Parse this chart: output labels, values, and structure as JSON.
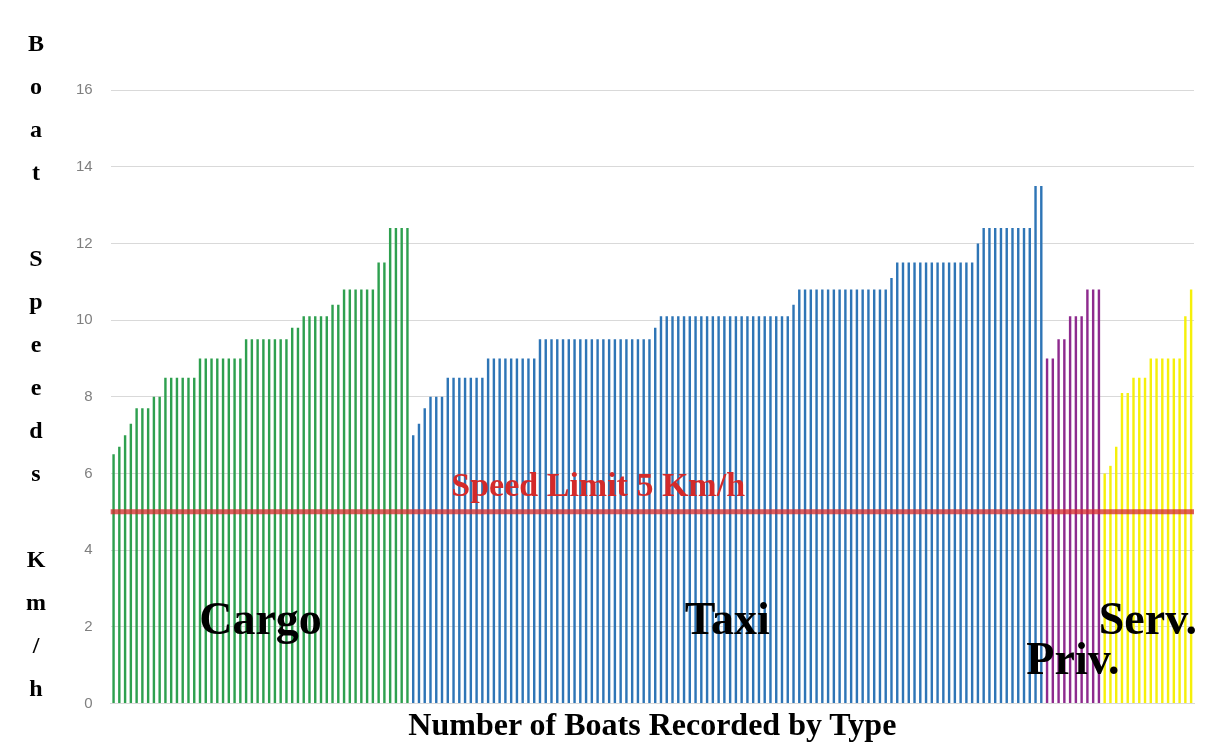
{
  "chart_data": {
    "type": "bar",
    "xlabel": "Number of Boats Recorded by Type",
    "ylabel": "Boat Speeds Km/h",
    "categories": [
      null,
      null,
      null,
      null,
      null,
      null,
      null,
      null,
      null,
      null,
      null,
      null,
      null,
      null,
      null,
      null,
      null,
      null,
      null,
      null,
      null,
      null,
      null,
      null,
      null,
      null,
      null,
      null,
      null,
      null,
      null,
      null,
      null,
      null,
      null,
      null,
      null,
      null,
      null,
      null,
      null,
      null,
      null,
      null,
      null,
      null,
      null,
      null,
      null,
      null,
      null,
      null,
      null,
      null,
      null,
      null,
      null,
      null,
      null,
      null,
      null,
      null,
      null,
      null,
      null,
      null,
      null,
      null,
      null,
      null,
      null,
      null,
      null,
      null,
      null,
      null,
      null,
      null,
      null,
      null,
      null,
      null,
      null,
      null,
      null,
      null,
      null,
      null,
      null,
      null,
      null,
      null,
      null,
      null,
      null,
      null,
      null,
      null,
      null,
      null,
      null,
      null,
      null,
      null,
      null,
      null,
      null,
      null,
      null,
      null,
      null,
      null,
      null,
      null,
      null,
      null,
      null,
      null,
      null,
      null,
      null,
      null,
      null,
      null,
      null,
      null,
      null,
      null,
      null,
      null,
      null,
      null,
      null,
      null,
      null,
      null,
      null,
      null,
      null,
      null,
      null,
      null,
      null,
      null,
      null,
      null,
      null,
      null,
      null,
      null,
      null,
      null,
      null,
      null,
      null,
      null,
      null,
      null,
      null,
      null,
      null,
      null,
      null,
      null,
      null,
      null,
      null,
      null,
      null,
      null,
      null,
      null,
      null,
      null,
      null,
      null,
      null,
      null,
      null,
      null,
      null,
      null,
      null,
      null,
      null,
      null,
      null,
      null
    ],
    "series": [
      {
        "name": "Cargo",
        "color": "#2ea04f",
        "values": [
          6.5,
          6.7,
          7.0,
          7.3,
          7.7,
          7.7,
          7.7,
          8.0,
          8.0,
          8.5,
          8.5,
          8.5,
          8.5,
          8.5,
          8.5,
          9.0,
          9.0,
          9.0,
          9.0,
          9.0,
          9.0,
          9.0,
          9.0,
          9.5,
          9.5,
          9.5,
          9.5,
          9.5,
          9.5,
          9.5,
          9.5,
          9.8,
          9.8,
          10.1,
          10.1,
          10.1,
          10.1,
          10.1,
          10.4,
          10.4,
          10.8,
          10.8,
          10.8,
          10.8,
          10.8,
          10.8,
          11.5,
          11.5,
          12.4,
          12.4,
          12.4,
          12.4,
          null,
          null,
          null,
          null,
          null,
          null,
          null,
          null,
          null,
          null,
          null,
          null,
          null,
          null,
          null,
          null,
          null,
          null,
          null,
          null,
          null,
          null,
          null,
          null,
          null,
          null,
          null,
          null,
          null,
          null,
          null,
          null,
          null,
          null,
          null,
          null,
          null,
          null,
          null,
          null,
          null,
          null,
          null,
          null,
          null,
          null,
          null,
          null,
          null,
          null,
          null,
          null,
          null,
          null,
          null,
          null,
          null,
          null,
          null,
          null,
          null,
          null,
          null,
          null,
          null,
          null,
          null,
          null,
          null,
          null,
          null,
          null,
          null,
          null,
          null,
          null,
          null,
          null,
          null,
          null,
          null,
          null,
          null,
          null,
          null,
          null,
          null,
          null,
          null,
          null,
          null,
          null,
          null,
          null,
          null,
          null,
          null,
          null,
          null,
          null,
          null,
          null,
          null,
          null,
          null,
          null,
          null,
          null,
          null,
          null,
          null,
          null,
          null,
          null,
          null,
          null,
          null,
          null,
          null,
          null,
          null,
          null,
          null,
          null,
          null,
          null,
          null,
          null,
          null,
          null,
          null,
          null,
          null,
          null,
          null,
          null
        ]
      },
      {
        "name": "Taxi",
        "color": "#2e75b6",
        "values": [
          null,
          null,
          null,
          null,
          null,
          null,
          null,
          null,
          null,
          null,
          null,
          null,
          null,
          null,
          null,
          null,
          null,
          null,
          null,
          null,
          null,
          null,
          null,
          null,
          null,
          null,
          null,
          null,
          null,
          null,
          null,
          null,
          null,
          null,
          null,
          null,
          null,
          null,
          null,
          null,
          null,
          null,
          null,
          null,
          null,
          null,
          null,
          null,
          null,
          null,
          null,
          null,
          7.0,
          7.3,
          7.7,
          8.0,
          8.0,
          8.0,
          8.5,
          8.5,
          8.5,
          8.5,
          8.5,
          8.5,
          8.5,
          9.0,
          9.0,
          9.0,
          9.0,
          9.0,
          9.0,
          9.0,
          9.0,
          9.0,
          9.5,
          9.5,
          9.5,
          9.5,
          9.5,
          9.5,
          9.5,
          9.5,
          9.5,
          9.5,
          9.5,
          9.5,
          9.5,
          9.5,
          9.5,
          9.5,
          9.5,
          9.5,
          9.5,
          9.5,
          9.8,
          10.1,
          10.1,
          10.1,
          10.1,
          10.1,
          10.1,
          10.1,
          10.1,
          10.1,
          10.1,
          10.1,
          10.1,
          10.1,
          10.1,
          10.1,
          10.1,
          10.1,
          10.1,
          10.1,
          10.1,
          10.1,
          10.1,
          10.1,
          10.4,
          10.8,
          10.8,
          10.8,
          10.8,
          10.8,
          10.8,
          10.8,
          10.8,
          10.8,
          10.8,
          10.8,
          10.8,
          10.8,
          10.8,
          10.8,
          10.8,
          11.1,
          11.5,
          11.5,
          11.5,
          11.5,
          11.5,
          11.5,
          11.5,
          11.5,
          11.5,
          11.5,
          11.5,
          11.5,
          11.5,
          11.5,
          12.0,
          12.4,
          12.4,
          12.4,
          12.4,
          12.4,
          12.4,
          12.4,
          12.4,
          12.4,
          13.5,
          13.5,
          null,
          null,
          null,
          null,
          null,
          null,
          null,
          null,
          null,
          null,
          null,
          null,
          null,
          null,
          null,
          null,
          null,
          null,
          null,
          null,
          null,
          null,
          null,
          null,
          null,
          null
        ]
      },
      {
        "name": "Priv.",
        "color": "#8e2a8e",
        "values": [
          null,
          null,
          null,
          null,
          null,
          null,
          null,
          null,
          null,
          null,
          null,
          null,
          null,
          null,
          null,
          null,
          null,
          null,
          null,
          null,
          null,
          null,
          null,
          null,
          null,
          null,
          null,
          null,
          null,
          null,
          null,
          null,
          null,
          null,
          null,
          null,
          null,
          null,
          null,
          null,
          null,
          null,
          null,
          null,
          null,
          null,
          null,
          null,
          null,
          null,
          null,
          null,
          null,
          null,
          null,
          null,
          null,
          null,
          null,
          null,
          null,
          null,
          null,
          null,
          null,
          null,
          null,
          null,
          null,
          null,
          null,
          null,
          null,
          null,
          null,
          null,
          null,
          null,
          null,
          null,
          null,
          null,
          null,
          null,
          null,
          null,
          null,
          null,
          null,
          null,
          null,
          null,
          null,
          null,
          null,
          null,
          null,
          null,
          null,
          null,
          null,
          null,
          null,
          null,
          null,
          null,
          null,
          null,
          null,
          null,
          null,
          null,
          null,
          null,
          null,
          null,
          null,
          null,
          null,
          null,
          null,
          null,
          null,
          null,
          null,
          null,
          null,
          null,
          null,
          null,
          null,
          null,
          null,
          null,
          null,
          null,
          null,
          null,
          null,
          null,
          null,
          null,
          null,
          null,
          null,
          null,
          null,
          null,
          null,
          null,
          null,
          null,
          null,
          null,
          null,
          null,
          null,
          null,
          null,
          null,
          null,
          null,
          9.0,
          9.0,
          9.5,
          9.5,
          10.1,
          10.1,
          10.1,
          10.8,
          10.8,
          10.8,
          null,
          null,
          null,
          null,
          null,
          null,
          null,
          null,
          null,
          null,
          null,
          null,
          null,
          null,
          null,
          null
        ]
      },
      {
        "name": "Serv.",
        "color": "#f5f00a",
        "values": [
          null,
          null,
          null,
          null,
          null,
          null,
          null,
          null,
          null,
          null,
          null,
          null,
          null,
          null,
          null,
          null,
          null,
          null,
          null,
          null,
          null,
          null,
          null,
          null,
          null,
          null,
          null,
          null,
          null,
          null,
          null,
          null,
          null,
          null,
          null,
          null,
          null,
          null,
          null,
          null,
          null,
          null,
          null,
          null,
          null,
          null,
          null,
          null,
          null,
          null,
          null,
          null,
          null,
          null,
          null,
          null,
          null,
          null,
          null,
          null,
          null,
          null,
          null,
          null,
          null,
          null,
          null,
          null,
          null,
          null,
          null,
          null,
          null,
          null,
          null,
          null,
          null,
          null,
          null,
          null,
          null,
          null,
          null,
          null,
          null,
          null,
          null,
          null,
          null,
          null,
          null,
          null,
          null,
          null,
          null,
          null,
          null,
          null,
          null,
          null,
          null,
          null,
          null,
          null,
          null,
          null,
          null,
          null,
          null,
          null,
          null,
          null,
          null,
          null,
          null,
          null,
          null,
          null,
          null,
          null,
          null,
          null,
          null,
          null,
          null,
          null,
          null,
          null,
          null,
          null,
          null,
          null,
          null,
          null,
          null,
          null,
          null,
          null,
          null,
          null,
          null,
          null,
          null,
          null,
          null,
          null,
          null,
          null,
          null,
          null,
          null,
          null,
          null,
          null,
          null,
          null,
          null,
          null,
          null,
          null,
          null,
          null,
          null,
          null,
          null,
          null,
          null,
          null,
          null,
          null,
          null,
          null,
          6.0,
          6.2,
          6.7,
          8.1,
          8.1,
          8.5,
          8.5,
          8.5,
          9.0,
          9.0,
          9.0,
          9.0,
          9.0,
          9.0,
          10.1,
          10.8
        ]
      }
    ],
    "ylim": [
      0,
      16
    ],
    "yticks": [
      0,
      2,
      4,
      6,
      8,
      10,
      12,
      14,
      16
    ],
    "grid": "y",
    "legend": false,
    "tick_labels": "y",
    "ref_lines": [
      {
        "axis": "y",
        "value": 5,
        "label": "Speed Limit 5 Km/h",
        "color": "#d42a2a"
      }
    ]
  }
}
